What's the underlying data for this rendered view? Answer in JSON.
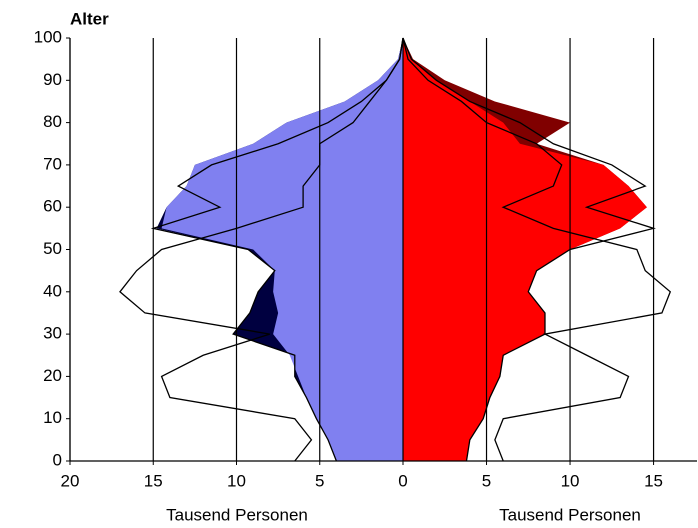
{
  "chart_data": {
    "type": "population-pyramid",
    "ylabel": "Alter",
    "xlabels": [
      "Tausend Personen",
      "Tausend Personen"
    ],
    "ages": [
      0,
      5,
      10,
      15,
      20,
      25,
      30,
      35,
      40,
      45,
      50,
      55,
      60,
      65,
      70,
      75,
      80,
      85,
      90,
      95,
      100
    ],
    "ylim": [
      0,
      100
    ],
    "yticks": [
      0,
      10,
      20,
      30,
      40,
      50,
      60,
      70,
      80,
      90,
      100
    ],
    "xlim_left": [
      20,
      0
    ],
    "xticks_left": [
      20,
      15,
      10,
      5,
      0
    ],
    "xlim_right": [
      0,
      17.6
    ],
    "xticks_right": [
      5,
      10,
      15
    ],
    "grid": true,
    "series": [
      {
        "side": "left",
        "style": "area",
        "color": "#000040",
        "values": [
          4,
          4.5,
          5.2,
          5.8,
          6.5,
          6.5,
          10.2,
          9.2,
          8.7,
          7.7,
          9.3,
          14.8,
          14.2,
          13,
          12.5,
          9,
          7,
          3.5,
          1.5,
          0.3,
          0
        ]
      },
      {
        "side": "left",
        "style": "area",
        "color": "#8080f0",
        "values": [
          4,
          4.5,
          5.2,
          5.8,
          6.3,
          6.8,
          7.8,
          7.5,
          7.8,
          7.7,
          9,
          14.5,
          14.2,
          13,
          12.5,
          9,
          7,
          3.5,
          1.5,
          0.3,
          0
        ]
      },
      {
        "side": "left",
        "style": "line",
        "color": "#000000",
        "values": [
          6.5,
          5.5,
          6.5,
          14,
          14.5,
          12,
          8,
          15.5,
          17,
          16,
          14.5,
          10,
          6,
          6,
          5,
          5,
          3,
          2,
          1,
          0.2,
          0
        ]
      },
      {
        "side": "left",
        "style": "line",
        "color": "#000000",
        "values": [
          4,
          4.5,
          5.2,
          5.8,
          6.5,
          6.5,
          10.2,
          9.2,
          8.7,
          7.7,
          9.3,
          15,
          11,
          13.5,
          11.5,
          7.5,
          4.5,
          2.5,
          1,
          0.2,
          0
        ]
      },
      {
        "side": "right",
        "style": "area",
        "color": "#800000",
        "values": [
          3.8,
          4,
          4.8,
          5.2,
          5.8,
          6,
          8.5,
          8.5,
          7.5,
          8,
          10,
          13,
          14.6,
          13.5,
          12,
          8,
          10,
          5.5,
          2.5,
          0.6,
          0
        ]
      },
      {
        "side": "right",
        "style": "area",
        "color": "#ff0000",
        "values": [
          3.8,
          4,
          4.8,
          5.2,
          5.8,
          6,
          8.5,
          8.5,
          7.5,
          8,
          10,
          13,
          14.6,
          13.5,
          12,
          7,
          6,
          4,
          2,
          0.5,
          0
        ]
      },
      {
        "side": "right",
        "style": "line",
        "color": "#000000",
        "values": [
          6,
          5.5,
          6,
          13,
          13.5,
          11,
          8.5,
          15.5,
          16,
          14.5,
          14,
          9,
          6,
          9,
          9.5,
          8,
          5,
          3.5,
          1.5,
          0.3,
          0
        ]
      },
      {
        "side": "right",
        "style": "line",
        "color": "#000000",
        "values": [
          3.8,
          4,
          4.8,
          5.2,
          5.8,
          6,
          8.5,
          8.5,
          7.5,
          8,
          10,
          15,
          11,
          14.5,
          12.5,
          9,
          7,
          4,
          2,
          0.5,
          0
        ]
      }
    ]
  }
}
